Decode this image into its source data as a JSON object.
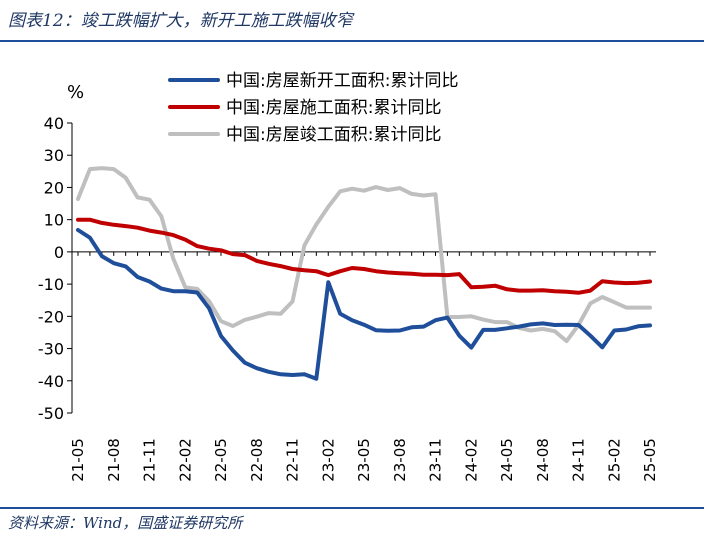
{
  "header": {
    "title": "图表12：竣工跌幅扩大，新开工施工跌幅收窄"
  },
  "footer": {
    "source": "资料来源：Wind，国盛证券研究所"
  },
  "chart_data": {
    "type": "line",
    "ylabel": "%",
    "ylim": [
      -50,
      40
    ],
    "yticks": [
      40,
      30,
      20,
      10,
      0,
      -10,
      -20,
      -30,
      -40,
      -50
    ],
    "x_start": "21-05",
    "x_end": "25-05",
    "xtick_labels": [
      "21-05",
      "21-08",
      "21-11",
      "22-02",
      "22-05",
      "22-08",
      "22-11",
      "23-02",
      "23-05",
      "23-08",
      "23-11",
      "24-02",
      "24-05",
      "24-08",
      "24-11",
      "25-02",
      "25-05"
    ],
    "grid": false,
    "legend_position": "top",
    "series": [
      {
        "name": "中国:房屋新开工面积:累计同比",
        "color": "#1f4e9a",
        "values": [
          6.8,
          4.4,
          -1.3,
          -3.5,
          -4.5,
          -7.8,
          -9.2,
          -11.4,
          -12.2,
          -12.2,
          -12.6,
          -17.5,
          -26.1,
          -30.6,
          -34.4,
          -36.1,
          -37.2,
          -38.0,
          -38.2,
          -38.0,
          -39.4,
          -9.4,
          -19.2,
          -21.2,
          -22.6,
          -24.3,
          -24.5,
          -24.4,
          -23.4,
          -23.2,
          -21.2,
          -20.4,
          -26.0,
          -29.7,
          -24.2,
          -24.2,
          -23.7,
          -23.2,
          -22.5,
          -22.2,
          -22.7,
          -22.6,
          -22.7,
          -26.0,
          -29.6,
          -24.4,
          -24.1,
          -23.1,
          -22.8
        ],
        "note": ""
      },
      {
        "name": "中国:房屋施工面积:累计同比",
        "color": "#c00000",
        "values": [
          10.0,
          10.0,
          9.0,
          8.4,
          8.0,
          7.5,
          6.6,
          6.0,
          5.2,
          3.8,
          1.8,
          1.0,
          0.5,
          -0.7,
          -1.0,
          -2.8,
          -3.7,
          -4.4,
          -5.3,
          -5.7,
          -6.0,
          -7.2,
          -6.0,
          -5.0,
          -5.3,
          -6.0,
          -6.4,
          -6.6,
          -6.8,
          -7.1,
          -7.1,
          -7.2,
          -6.9,
          -11.0,
          -10.8,
          -10.5,
          -11.6,
          -12.0,
          -12.0,
          -11.9,
          -12.2,
          -12.4,
          -12.7,
          -12.0,
          -9.1,
          -9.5,
          -9.7,
          -9.6,
          -9.2
        ],
        "note": ""
      },
      {
        "name": "中国:房屋竣工面积:累计同比",
        "color": "#bfbfbf",
        "values": [
          16.4,
          25.7,
          26.0,
          25.7,
          23.0,
          16.9,
          16.2,
          11.0,
          -2.1,
          -11.0,
          -11.5,
          -15.3,
          -21.5,
          -23.0,
          -21.1,
          -20.1,
          -19.0,
          -19.2,
          -15.4,
          2.0,
          8.5,
          14.0,
          18.8,
          19.6,
          19.0,
          20.1,
          19.2,
          19.8,
          18.0,
          17.5,
          17.9,
          -20.2,
          -20.2,
          -20.0,
          -21.0,
          -21.8,
          -21.8,
          -23.6,
          -24.4,
          -23.9,
          -24.6,
          -27.7,
          -22.7,
          -16.0,
          -14.0,
          -15.6,
          -17.3,
          -17.3,
          -17.3
        ],
        "note": ""
      }
    ]
  }
}
